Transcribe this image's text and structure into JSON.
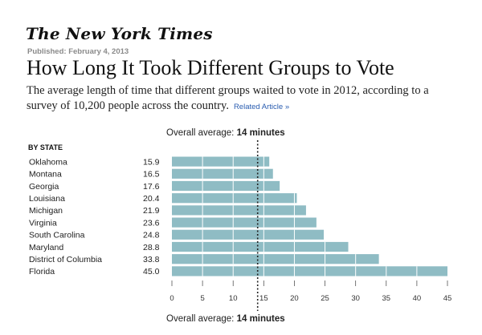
{
  "header": {
    "masthead": "The New York Times",
    "published": "Published: February 4, 2013",
    "headline": "How Long It Took Different Groups to Vote",
    "subtitle": "The average length of time that different groups waited to vote in 2012, according to a survey of 10,200 people across the country.",
    "related_link": "Related Article »"
  },
  "overall": {
    "prefix": "Overall average: ",
    "value": "14 minutes",
    "average_value": 14
  },
  "section_label": "BY STATE",
  "colors": {
    "bar": "#8fbcc4",
    "bar_divider": "#ffffff",
    "average_line": "#222222",
    "axis": "#555555",
    "link": "#2a5db0"
  },
  "chart_data": {
    "type": "bar",
    "orientation": "horizontal",
    "title": "How Long It Took Different Groups to Vote",
    "xlabel": "",
    "ylabel": "",
    "categories": [
      "Oklahoma",
      "Montana",
      "Georgia",
      "Louisiana",
      "Michigan",
      "Virginia",
      "South Carolina",
      "Maryland",
      "District of Columbia",
      "Florida"
    ],
    "values": [
      15.9,
      16.5,
      17.6,
      20.4,
      21.9,
      23.6,
      24.8,
      28.8,
      33.8,
      45.0
    ],
    "value_labels": [
      "15.9",
      "16.5",
      "17.6",
      "20.4",
      "21.9",
      "23.6",
      "24.8",
      "28.8",
      "33.8",
      "45.0"
    ],
    "xlim": [
      0,
      45
    ],
    "xticks": [
      0,
      5,
      10,
      15,
      20,
      25,
      30,
      35,
      40,
      45
    ],
    "reference_line": 14,
    "grid": false
  }
}
